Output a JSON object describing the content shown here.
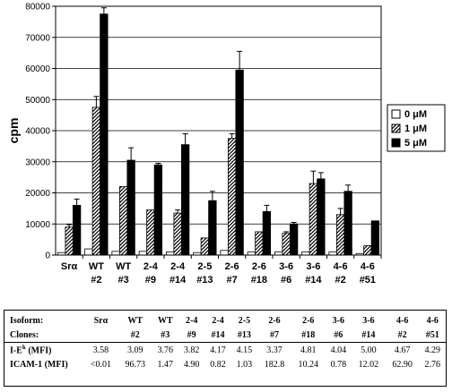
{
  "chart_data": {
    "type": "bar",
    "ylabel": "cpm",
    "ylim": [
      0,
      80000
    ],
    "yticks": [
      "0",
      "10000",
      "20000",
      "30000",
      "40000",
      "50000",
      "60000",
      "70000",
      "80000"
    ],
    "grid": true,
    "legend_position": "right",
    "categories": [
      [
        "Srα",
        ""
      ],
      [
        "WT",
        "#2"
      ],
      [
        "WT",
        "#3"
      ],
      [
        "2-4",
        "#9"
      ],
      [
        "2-4",
        "#14"
      ],
      [
        "2-5",
        "#13"
      ],
      [
        "2-6",
        "#7"
      ],
      [
        "2-6",
        "#18"
      ],
      [
        "3-6",
        "#6"
      ],
      [
        "3-6",
        "#14"
      ],
      [
        "4-6",
        "#2"
      ],
      [
        "4-6",
        "#51"
      ]
    ],
    "series": [
      {
        "name": "0 μM",
        "color": "#ffffff",
        "pattern": "none",
        "values": [
          800,
          2000,
          1200,
          1200,
          1000,
          800,
          1500,
          1000,
          1000,
          1000,
          1000,
          500
        ],
        "errors": [
          0,
          0,
          0,
          0,
          0,
          0,
          0,
          0,
          0,
          0,
          0,
          0
        ]
      },
      {
        "name": "1 μM",
        "color": "#ffffff",
        "pattern": "hatch",
        "values": [
          9000,
          47500,
          22000,
          14500,
          13500,
          5500,
          37500,
          7500,
          7000,
          23000,
          13000,
          3000
        ],
        "errors": [
          800,
          3500,
          0,
          0,
          1000,
          0,
          1500,
          0,
          500,
          4000,
          2000,
          0
        ]
      },
      {
        "name": "5 μM",
        "color": "#000000",
        "pattern": "solid",
        "values": [
          16000,
          77500,
          30500,
          29000,
          35500,
          17500,
          59500,
          14000,
          10000,
          24500,
          20500,
          11000
        ],
        "errors": [
          2000,
          2000,
          4000,
          500,
          3500,
          3000,
          6000,
          2000,
          500,
          2000,
          2000,
          0
        ]
      }
    ]
  },
  "table": {
    "rows": [
      {
        "label": "Isoform:",
        "cells": [
          "Srα",
          "WT",
          "WT",
          "2-4",
          "2-4",
          "2-5",
          "2-6",
          "2-6",
          "3-6",
          "3-6",
          "4-6",
          "4-6"
        ]
      },
      {
        "label": "Clones:",
        "cells": [
          "",
          "#2",
          "#3",
          "#9",
          "#14",
          "#13",
          "#7",
          "#18",
          "#6",
          "#14",
          "#2",
          "#51"
        ]
      },
      {
        "label_main": "I-E",
        "label_sup": "k",
        "label_tail": " (MFI)",
        "cells": [
          "3.58",
          "3.09",
          "3.76",
          "3.82",
          "4.17",
          "4.15",
          "3.37",
          "4.81",
          "4.04",
          "5.00",
          "4.67",
          "4.29"
        ]
      },
      {
        "label": "ICAM-1 (MFI)",
        "cells": [
          "<0.01",
          "96.73",
          "1.47",
          "4.90",
          "0.82",
          "1.03",
          "182.8",
          "10.24",
          "0.78",
          "12.02",
          "62.90",
          "2.76"
        ]
      }
    ]
  }
}
